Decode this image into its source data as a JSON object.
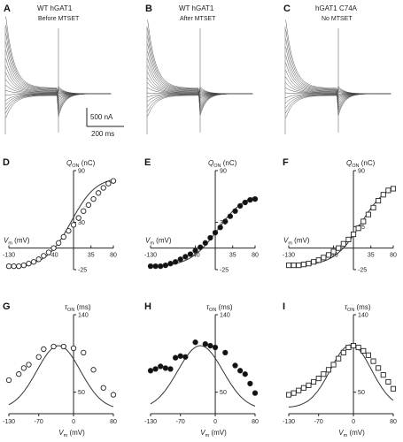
{
  "figure": {
    "trace_panels": [
      {
        "letter": "A",
        "title": "WT hGAT1",
        "subtitle": "Before MTSET",
        "amps": [
          92,
          82,
          72,
          62,
          52,
          42,
          33,
          25,
          17,
          10,
          4,
          -2,
          -8,
          -13,
          -18,
          -23,
          -29
        ]
      },
      {
        "letter": "B",
        "title": "WT hGAT1",
        "subtitle": "After MTSET",
        "amps": [
          88,
          78,
          69,
          60,
          51,
          42,
          34,
          26,
          19,
          13,
          7,
          1,
          -4,
          -9,
          -15,
          -21,
          -27
        ]
      },
      {
        "letter": "C",
        "title": "hGAT1 C74A",
        "subtitle": "No MTSET",
        "amps": [
          88,
          77,
          66,
          56,
          46,
          37,
          28,
          20,
          13,
          7,
          1,
          -5,
          -11,
          -17,
          -23,
          -29
        ]
      }
    ],
    "scale_bar": {
      "current": "500 nA",
      "time": "200 ms"
    }
  },
  "chart_data": [
    {
      "panel": "D",
      "type": "scatter",
      "marker": "open-circle",
      "ylabel": "Q_ON (nC)",
      "xlabel": "V_m (mV)",
      "xlim": [
        -130,
        80
      ],
      "ylim": [
        -25,
        90
      ],
      "xticks": [
        -130,
        -40,
        35,
        80
      ],
      "yticks": [
        90,
        30,
        -25
      ],
      "x": [
        -130,
        -120,
        -110,
        -100,
        -90,
        -80,
        -70,
        -60,
        -50,
        -40,
        -30,
        -20,
        -10,
        0,
        10,
        20,
        30,
        40,
        50,
        60,
        70,
        80
      ],
      "y": [
        -21,
        -21,
        -21,
        -20,
        -18,
        -16,
        -13,
        -9,
        -5,
        0,
        6,
        13,
        20,
        27,
        35,
        43,
        50,
        57,
        64,
        70,
        75,
        78
      ],
      "fit": {
        "v_half": -5,
        "k": 25,
        "min": -22,
        "max": 83
      }
    },
    {
      "panel": "E",
      "type": "scatter",
      "marker": "filled-circle",
      "ylabel": "Q_ON (nC)",
      "xlabel": "V_m (mV)",
      "xlim": [
        -130,
        80
      ],
      "ylim": [
        -25,
        90
      ],
      "xticks": [
        -130,
        -40,
        35,
        80
      ],
      "yticks": [
        90,
        30,
        -25
      ],
      "x": [
        -130,
        -120,
        -110,
        -100,
        -90,
        -80,
        -70,
        -60,
        -50,
        -40,
        -30,
        -20,
        -10,
        0,
        10,
        20,
        30,
        40,
        50,
        60,
        70,
        80
      ],
      "y": [
        -21,
        -21,
        -21,
        -20,
        -18,
        -16,
        -13,
        -10,
        -7,
        -3,
        1,
        6,
        12,
        18,
        24,
        31,
        37,
        43,
        49,
        53,
        56,
        57
      ],
      "fit": {
        "v_half": 5,
        "k": 28,
        "min": -22,
        "max": 65
      }
    },
    {
      "panel": "F",
      "type": "scatter",
      "marker": "open-square",
      "ylabel": "Q_ON (nC)",
      "xlabel": "V_m (mV)",
      "xlim": [
        -130,
        80
      ],
      "ylim": [
        -25,
        90
      ],
      "xticks": [
        -130,
        -40,
        35,
        80
      ],
      "yticks": [
        90,
        25,
        -25
      ],
      "x": [
        -130,
        -120,
        -110,
        -100,
        -90,
        -80,
        -70,
        -60,
        -50,
        -40,
        -30,
        -20,
        -10,
        0,
        10,
        20,
        30,
        40,
        50,
        60,
        70,
        80
      ],
      "y": [
        -20,
        -20,
        -20,
        -19,
        -18,
        -16,
        -14,
        -11,
        -8,
        -4,
        0,
        5,
        10,
        16,
        23,
        31,
        39,
        47,
        55,
        62,
        67,
        69
      ],
      "fit": {
        "v_half": 15,
        "k": 27,
        "min": -21,
        "max": 78
      }
    },
    {
      "panel": "G",
      "type": "scatter",
      "marker": "open-circle",
      "ylabel": "τ_ON (ms)",
      "xlabel": "V_m (mV)",
      "xlim": [
        -130,
        80
      ],
      "ylim": [
        25,
        140
      ],
      "xticks": [
        -130,
        -70,
        0,
        80
      ],
      "yticks": [
        140,
        50
      ],
      "x": [
        -130,
        -110,
        -100,
        -90,
        -70,
        -60,
        -40,
        -20,
        0,
        20,
        40,
        60,
        80
      ],
      "y": [
        64,
        71,
        78,
        82,
        91,
        100,
        103,
        103,
        101,
        96,
        76,
        55,
        47
      ],
      "fit": {
        "peak": 104,
        "peak_v": -30,
        "base": 30,
        "width": 62
      }
    },
    {
      "panel": "H",
      "type": "scatter",
      "marker": "filled-circle",
      "ylabel": "τ_ON (ms)",
      "xlabel": "V_m (mV)",
      "xlim": [
        -130,
        80
      ],
      "ylim": [
        25,
        140
      ],
      "xticks": [
        -130,
        -70,
        0,
        80
      ],
      "yticks": [
        140,
        50
      ],
      "x": [
        -130,
        -120,
        -110,
        -100,
        -90,
        -80,
        -70,
        -60,
        -40,
        -20,
        -10,
        0,
        20,
        40,
        50,
        60,
        70,
        80
      ],
      "y": [
        75,
        77,
        80,
        78,
        77,
        90,
        92,
        91,
        108,
        106,
        104,
        102,
        96,
        81,
        75,
        71,
        60,
        49
      ],
      "fit": {
        "peak": 104,
        "peak_v": -30,
        "base": 30,
        "width": 64
      }
    },
    {
      "panel": "I",
      "type": "scatter",
      "marker": "open-square",
      "ylabel": "τ_ON (ms)",
      "xlabel": "V_m (mV)",
      "xlim": [
        -130,
        80
      ],
      "ylim": [
        25,
        140
      ],
      "xticks": [
        -130,
        -70,
        0,
        80
      ],
      "yticks": [
        140,
        50
      ],
      "x": [
        -130,
        -120,
        -110,
        -100,
        -90,
        -80,
        -70,
        -60,
        -50,
        -40,
        -30,
        -20,
        -10,
        0,
        10,
        20,
        30,
        40,
        50,
        60,
        70,
        80
      ],
      "y": [
        47,
        49,
        52,
        55,
        58,
        62,
        66,
        71,
        76,
        82,
        89,
        96,
        102,
        104,
        102,
        98,
        93,
        86,
        78,
        70,
        62,
        54
      ],
      "fit": {
        "peak": 105,
        "peak_v": -5,
        "base": 32,
        "width": 58
      }
    }
  ],
  "symbols": {
    "q": "Q",
    "q_sub": "ON",
    "q_unit": "(nC)",
    "tau": "τ",
    "tau_sub": "ON",
    "tau_unit": "(ms)",
    "v": "V",
    "v_sub": "m",
    "v_unit": "(mV)"
  }
}
